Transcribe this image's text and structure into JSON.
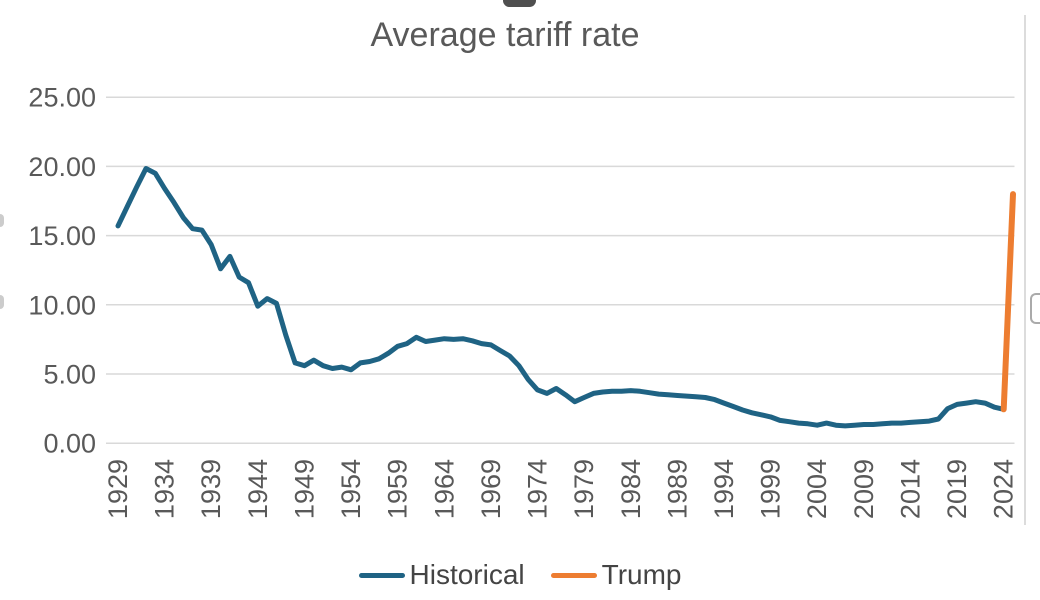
{
  "page": {
    "title": "Average tariff rate"
  },
  "colors": {
    "historical": "#1F6384",
    "trump": "#ED7D31",
    "grid": "#D9D9D9",
    "axis_text": "#595959",
    "title_text": "#595959",
    "legend_text": "#444444"
  },
  "chart_data": {
    "type": "line",
    "title": "Average tariff rate",
    "xlabel": "",
    "ylabel": "",
    "xlim": [
      1929,
      2025
    ],
    "ylim": [
      0,
      25
    ],
    "grid": "horizontal",
    "legend_position": "bottom",
    "y_ticks": [
      0,
      5,
      10,
      15,
      20,
      25
    ],
    "y_tick_labels": [
      "0.00",
      "5.00",
      "10.00",
      "15.00",
      "20.00",
      "25.00"
    ],
    "x_ticks": [
      1929,
      1934,
      1939,
      1944,
      1949,
      1954,
      1959,
      1964,
      1969,
      1974,
      1979,
      1984,
      1989,
      1994,
      1999,
      2004,
      2009,
      2014,
      2019,
      2024
    ],
    "series": [
      {
        "name": "Historical",
        "color": "#1F6384",
        "x": [
          1929,
          1930,
          1931,
          1932,
          1933,
          1934,
          1935,
          1936,
          1937,
          1938,
          1939,
          1940,
          1941,
          1942,
          1943,
          1944,
          1945,
          1946,
          1947,
          1948,
          1949,
          1950,
          1951,
          1952,
          1953,
          1954,
          1955,
          1956,
          1957,
          1958,
          1959,
          1960,
          1961,
          1962,
          1963,
          1964,
          1965,
          1966,
          1967,
          1968,
          1969,
          1970,
          1971,
          1972,
          1973,
          1974,
          1975,
          1976,
          1977,
          1978,
          1979,
          1980,
          1981,
          1982,
          1983,
          1984,
          1985,
          1986,
          1987,
          1988,
          1989,
          1990,
          1991,
          1992,
          1993,
          1994,
          1995,
          1996,
          1997,
          1998,
          1999,
          2000,
          2001,
          2002,
          2003,
          2004,
          2005,
          2006,
          2007,
          2008,
          2009,
          2010,
          2011,
          2012,
          2013,
          2014,
          2015,
          2016,
          2017,
          2018,
          2019,
          2020,
          2021,
          2022,
          2023,
          2024
        ],
        "values": [
          15.7,
          17.1,
          18.5,
          19.85,
          19.5,
          18.4,
          17.4,
          16.3,
          15.5,
          15.4,
          14.35,
          12.6,
          13.5,
          12.0,
          11.6,
          9.9,
          10.45,
          10.1,
          7.8,
          5.8,
          5.6,
          6.0,
          5.6,
          5.4,
          5.5,
          5.3,
          5.8,
          5.9,
          6.1,
          6.5,
          7.0,
          7.2,
          7.65,
          7.35,
          7.45,
          7.55,
          7.5,
          7.55,
          7.4,
          7.2,
          7.1,
          6.7,
          6.3,
          5.6,
          4.6,
          3.85,
          3.6,
          3.95,
          3.5,
          3.0,
          3.3,
          3.6,
          3.7,
          3.75,
          3.75,
          3.8,
          3.75,
          3.65,
          3.55,
          3.5,
          3.45,
          3.4,
          3.35,
          3.3,
          3.15,
          2.9,
          2.65,
          2.4,
          2.2,
          2.05,
          1.9,
          1.65,
          1.55,
          1.45,
          1.4,
          1.3,
          1.45,
          1.3,
          1.25,
          1.3,
          1.35,
          1.35,
          1.4,
          1.45,
          1.45,
          1.5,
          1.55,
          1.6,
          1.75,
          2.5,
          2.8,
          2.9,
          3.0,
          2.9,
          2.6,
          2.45
        ]
      },
      {
        "name": "Trump",
        "color": "#ED7D31",
        "x": [
          2024,
          2025
        ],
        "values": [
          2.45,
          18.0
        ]
      }
    ]
  }
}
